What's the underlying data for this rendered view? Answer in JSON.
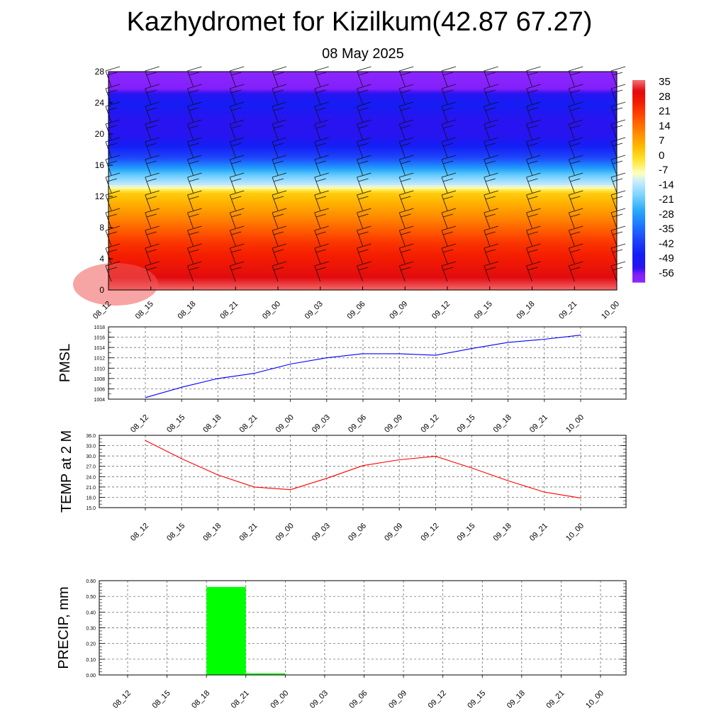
{
  "header": {
    "title": "Kazhydromet for Kizilkum(42.87 67.27)",
    "subtitle": "08 May 2025"
  },
  "chart_data": [
    {
      "type": "heatmap",
      "name": "vertical-section",
      "x_categories": [
        "08_12",
        "08_15",
        "08_18",
        "08_21",
        "09_00",
        "09_03",
        "09_06",
        "09_09",
        "09_12",
        "09_15",
        "09_18",
        "09_21",
        "10_00"
      ],
      "y_ticks": [
        0,
        4,
        8,
        12,
        16,
        20,
        24,
        28
      ],
      "ylim": [
        0,
        28
      ],
      "colorbar": {
        "labels": [
          "35",
          "28",
          "21",
          "14",
          "7",
          "0",
          "-7",
          "-14",
          "-21",
          "-28",
          "-35",
          "-42",
          "-49",
          "-56"
        ],
        "range": [
          -63,
          35
        ]
      },
      "temperature_profile": [
        {
          "y": 0,
          "t": 35
        },
        {
          "y": 2,
          "t": 29
        },
        {
          "y": 6,
          "t": 21
        },
        {
          "y": 9,
          "t": 11
        },
        {
          "y": 12.5,
          "t": 0
        },
        {
          "y": 13.5,
          "t": -14
        },
        {
          "y": 15,
          "t": -24
        },
        {
          "y": 17,
          "t": -42
        },
        {
          "y": 20,
          "t": -56
        },
        {
          "y": 22,
          "t": -56
        },
        {
          "y": 24,
          "t": -49
        },
        {
          "y": 26,
          "t": -60
        },
        {
          "y": 28,
          "t": -62
        }
      ],
      "grid": false
    },
    {
      "type": "line",
      "name": "pmsl",
      "ylabel": "PMSL",
      "x_categories": [
        "08_12",
        "08_15",
        "08_18",
        "08_21",
        "09_00",
        "09_03",
        "09_06",
        "09_09",
        "09_12",
        "09_15",
        "09_18",
        "09_21",
        "10_00"
      ],
      "values": [
        1004.3,
        1006.3,
        1008.0,
        1009.0,
        1010.8,
        1012.0,
        1012.8,
        1012.8,
        1012.5,
        1013.8,
        1015.0,
        1015.6,
        1016.4
      ],
      "ylim": [
        1004,
        1018
      ],
      "y_ticks": [
        "1004",
        "1006",
        "1008",
        "1010",
        "1012",
        "1014",
        "1016",
        "1018"
      ],
      "color": "#0000ff",
      "grid": true
    },
    {
      "type": "line",
      "name": "temp2m",
      "ylabel": "TEMP at 2 M",
      "x_categories": [
        "08_12",
        "08_15",
        "08_18",
        "08_21",
        "09_00",
        "09_03",
        "09_06",
        "09_09",
        "09_12",
        "09_15",
        "09_18",
        "09_21",
        "10_00"
      ],
      "values": [
        34.5,
        29.2,
        24.5,
        21.0,
        20.2,
        23.5,
        27.2,
        28.9,
        29.9,
        26.5,
        22.8,
        19.5,
        17.8
      ],
      "ylim": [
        15,
        36
      ],
      "y_ticks": [
        "15.0",
        "18.0",
        "21.0",
        "24.0",
        "27.0",
        "30.0",
        "33.0",
        "36.0"
      ],
      "color": "#ff0000",
      "grid": true
    },
    {
      "type": "bar",
      "name": "precip",
      "ylabel": "PRECIP, mm",
      "x_categories": [
        "08_12",
        "08_15",
        "08_18",
        "08_21",
        "09_00",
        "09_03",
        "09_06",
        "09_09",
        "09_12",
        "09_15",
        "09_18",
        "09_21",
        "10_00"
      ],
      "values": [
        0,
        0,
        0,
        0.56,
        0.01,
        0,
        0,
        0,
        0,
        0,
        0,
        0,
        0
      ],
      "ylim": [
        0,
        0.6
      ],
      "y_ticks": [
        "0.00",
        "0.10",
        "0.20",
        "0.30",
        "0.40",
        "0.50",
        "0.60"
      ],
      "color": "#00ff00",
      "grid": true
    }
  ]
}
